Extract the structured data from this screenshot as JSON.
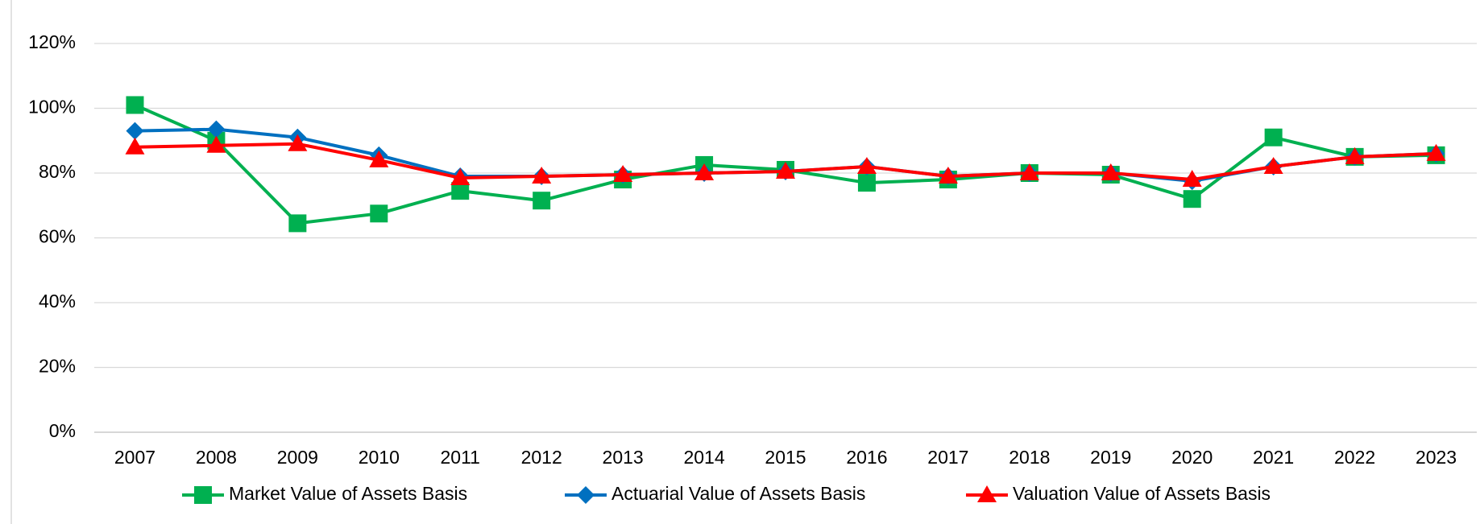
{
  "chart_data": {
    "type": "line",
    "categories": [
      "2007",
      "2008",
      "2009",
      "2010",
      "2011",
      "2012",
      "2013",
      "2014",
      "2015",
      "2016",
      "2017",
      "2018",
      "2019",
      "2020",
      "2021",
      "2022",
      "2023"
    ],
    "series": [
      {
        "name": "Market Value of Assets Basis",
        "color": "#00b050",
        "marker": "square",
        "values": [
          101,
          90,
          64.5,
          67.5,
          74.5,
          71.5,
          78,
          82.5,
          81,
          77,
          78,
          80,
          79.5,
          72,
          91,
          85,
          85.5
        ]
      },
      {
        "name": "Actuarial Value of Assets Basis",
        "color": "#0070c0",
        "marker": "diamond",
        "values": [
          93,
          93.5,
          91,
          85.5,
          79,
          79,
          79.5,
          80,
          80.5,
          82,
          79,
          80,
          80,
          77.5,
          82,
          85,
          86
        ]
      },
      {
        "name": "Valuation Value of Assets Basis",
        "color": "#ff0000",
        "marker": "triangle",
        "values": [
          88,
          88.5,
          89,
          84,
          78.5,
          79,
          79.5,
          80,
          80.5,
          82,
          79,
          80,
          80,
          78,
          82,
          85,
          86
        ]
      }
    ],
    "ylim": [
      0,
      120
    ],
    "yticks": [
      {
        "value": 0,
        "label": "0%"
      },
      {
        "value": 20,
        "label": "20%"
      },
      {
        "value": 40,
        "label": "40%"
      },
      {
        "value": 60,
        "label": "60%"
      },
      {
        "value": 80,
        "label": "80%"
      },
      {
        "value": 100,
        "label": "100%"
      },
      {
        "value": 120,
        "label": "120%"
      }
    ],
    "grid": true,
    "legend": "bottom"
  }
}
